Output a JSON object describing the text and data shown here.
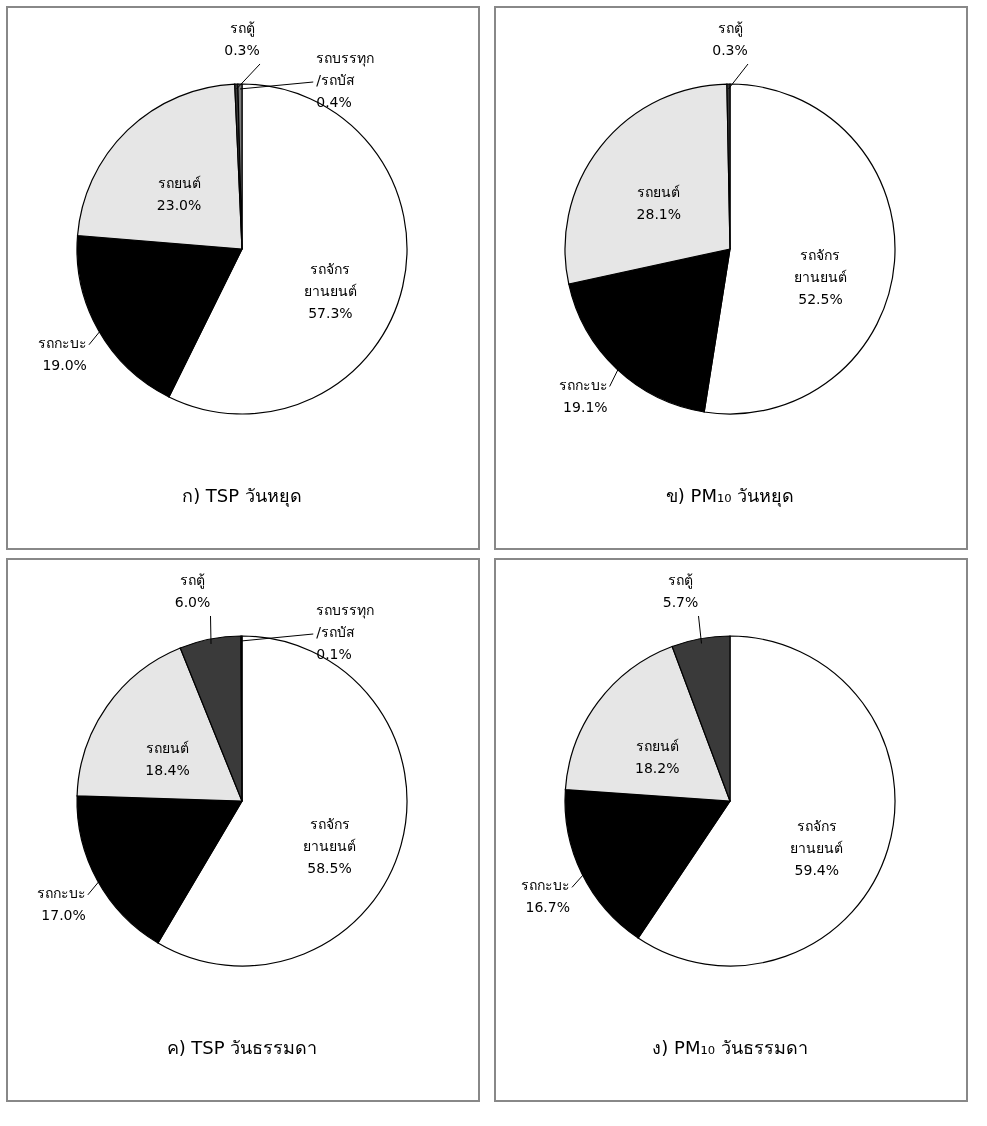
{
  "chart_data": [
    {
      "type": "pie",
      "title": "ก) TSP  วันหยุด",
      "categories": [
        "รถจักร\nยานยนต์",
        "รถกะบะ",
        "รถยนต์",
        "รถตู้",
        "รถบรรทุก\n/รถบัส"
      ],
      "values": [
        57.3,
        19.0,
        23.0,
        0.3,
        0.4
      ],
      "value_labels": [
        "57.3%",
        "19.0%",
        "23.0%",
        "0.3%",
        "0.4%"
      ],
      "colors": [
        "#ffffff",
        "#000000",
        "#e6e6e6",
        "#3a3a3a",
        "#7f7f7f"
      ]
    },
    {
      "type": "pie",
      "title": "ข) PM₁₀  วันหยุด",
      "categories": [
        "รถจักร\nยานยนต์",
        "รถกะบะ",
        "รถยนต์",
        "รถตู้"
      ],
      "values": [
        52.5,
        19.1,
        28.1,
        0.3
      ],
      "value_labels": [
        "52.5%",
        "19.1%",
        "28.1%",
        "0.3%"
      ],
      "colors": [
        "#ffffff",
        "#000000",
        "#e6e6e6",
        "#3a3a3a"
      ]
    },
    {
      "type": "pie",
      "title": "ค) TSP  วันธรรมดา",
      "categories": [
        "รถจักร\nยานยนต์",
        "รถกะบะ",
        "รถยนต์",
        "รถตู้",
        "รถบรรทุก\n/รถบัส"
      ],
      "values": [
        58.5,
        17.0,
        18.4,
        6.0,
        0.1
      ],
      "value_labels": [
        "58.5%",
        "17.0%",
        "18.4%",
        "6.0%",
        "0.1%"
      ],
      "colors": [
        "#ffffff",
        "#000000",
        "#e6e6e6",
        "#3a3a3a",
        "#7f7f7f"
      ]
    },
    {
      "type": "pie",
      "title": "ง) PM₁₀  วันธรรมดา",
      "categories": [
        "รถจักร\nยานยนต์",
        "รถกะบะ",
        "รถยนต์",
        "รถตู้"
      ],
      "values": [
        59.4,
        16.7,
        18.2,
        5.7
      ],
      "value_labels": [
        "59.4%",
        "16.7%",
        "18.2%",
        "5.7%"
      ],
      "colors": [
        "#ffffff",
        "#000000",
        "#e6e6e6",
        "#3a3a3a"
      ]
    }
  ]
}
